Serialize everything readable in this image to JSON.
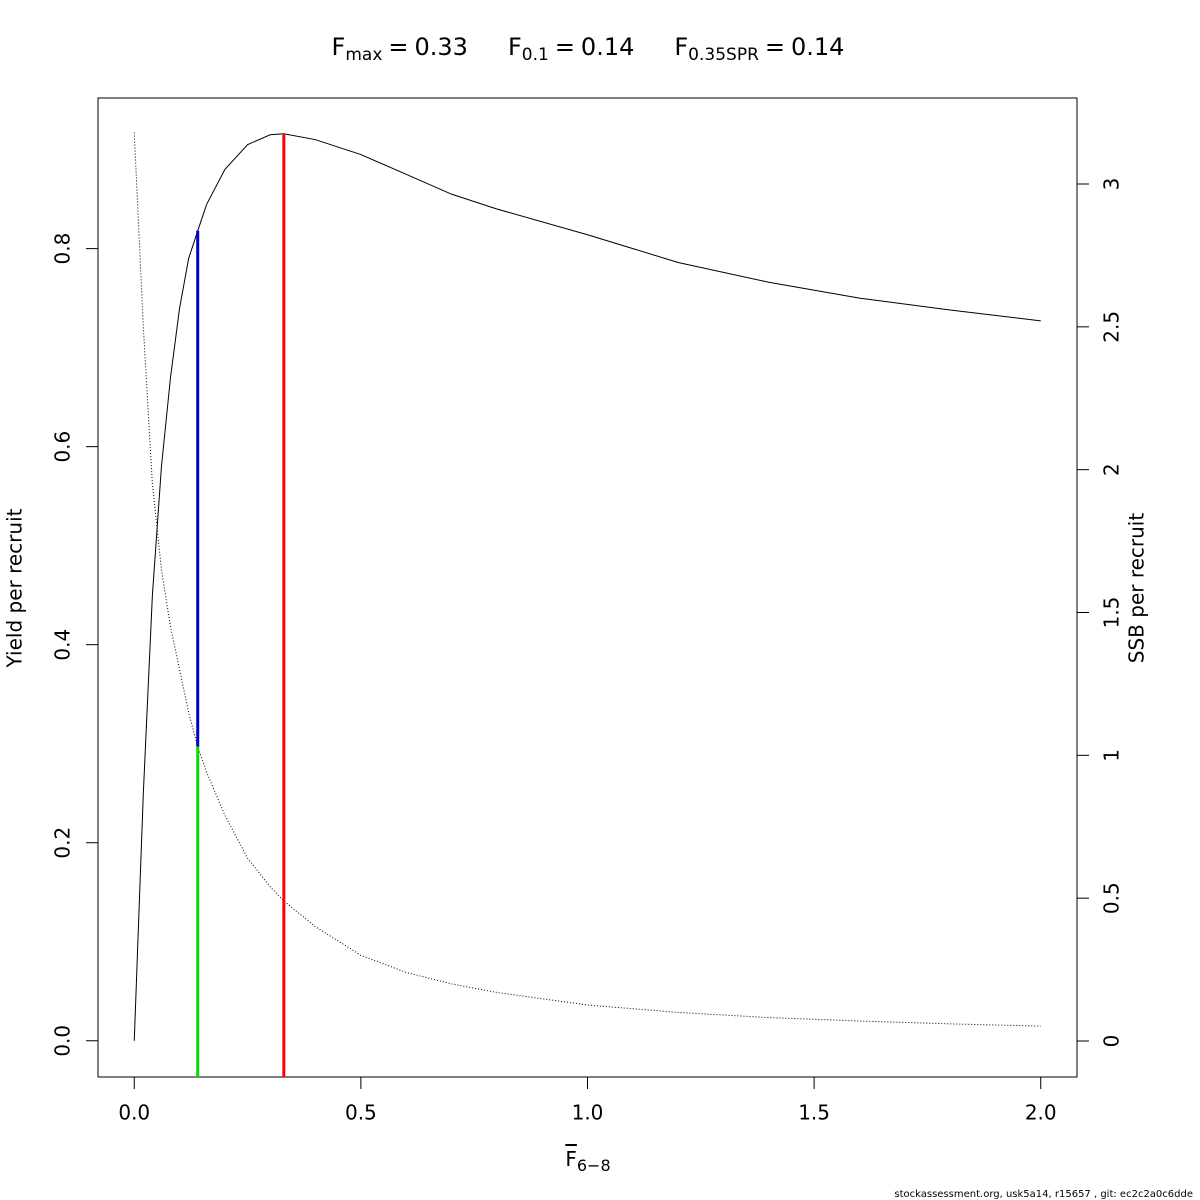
{
  "chart_data": {
    "type": "line",
    "title": [
      {
        "base": "F",
        "sub": "max",
        "sep": "=",
        "value": 0.33
      },
      {
        "base": "F",
        "sub": "0.1",
        "sep": "=",
        "value": 0.14
      },
      {
        "base": "F",
        "sub": "0.35SPR",
        "sep": "=",
        "value": 0.14
      }
    ],
    "xlabel": {
      "base": "F",
      "sub": "6−8"
    },
    "ylabel": "Yield per recruit",
    "y2label": "SSB per recruit",
    "footer": "stockassessment.org, usk5a14, r15657 , git: ec2c2a0c6dde",
    "x": [
      0,
      0.02,
      0.04,
      0.06,
      0.08,
      0.1,
      0.12,
      0.14,
      0.16,
      0.2,
      0.25,
      0.3,
      0.33,
      0.4,
      0.5,
      0.6,
      0.7,
      0.8,
      1.0,
      1.2,
      1.4,
      1.6,
      1.8,
      2.0
    ],
    "series": [
      {
        "color": "#000000",
        "dash": "solid",
        "values": [
          0,
          0.25,
          0.45,
          0.58,
          0.67,
          0.74,
          0.79,
          0.818,
          0.845,
          0.88,
          0.905,
          0.915,
          0.916,
          0.91,
          0.895,
          0.875,
          0.855,
          0.84,
          0.814,
          0.786,
          0.766,
          0.75,
          0.738,
          0.727
        ]
      },
      {
        "color": "#000000",
        "dash": "dotted",
        "axis": "y2",
        "values": [
          3.18,
          2.5,
          1.95,
          1.65,
          1.45,
          1.3,
          1.15,
          1.03,
          0.94,
          0.79,
          0.64,
          0.54,
          0.49,
          0.4,
          0.3,
          0.24,
          0.2,
          0.17,
          0.126,
          0.1,
          0.082,
          0.07,
          0.06,
          0.052
        ]
      }
    ],
    "vlines": [
      {
        "x": 0.33,
        "y_top": 0.916,
        "color": "#ff0000"
      },
      {
        "x": 0.14,
        "y_top": 0.818,
        "y2_bottom": 1.03,
        "color": "#0000cc"
      },
      {
        "x": 0.14,
        "y2_top": 1.03,
        "color": "#00dd00"
      }
    ],
    "xlim": [
      -0.08,
      2.08
    ],
    "xticks": [
      {
        "value": 0,
        "label": "0.0"
      },
      {
        "value": 0.5,
        "label": "0.5"
      },
      {
        "value": 1,
        "label": "1.0"
      },
      {
        "value": 1.5,
        "label": "1.5"
      },
      {
        "value": 2,
        "label": "2.0"
      }
    ],
    "ylim": [
      -0.0366,
      0.9521
    ],
    "yticks": [
      {
        "value": 0,
        "label": "0.0"
      },
      {
        "value": 0.2,
        "label": "0.2"
      },
      {
        "value": 0.4,
        "label": "0.4"
      },
      {
        "value": 0.6,
        "label": "0.6"
      },
      {
        "value": 0.8,
        "label": "0.8"
      }
    ],
    "y2lim": [
      -0.126,
      3.301
    ],
    "y2ticks": [
      0,
      0.5,
      1,
      1.5,
      2,
      2.5,
      3
    ]
  }
}
